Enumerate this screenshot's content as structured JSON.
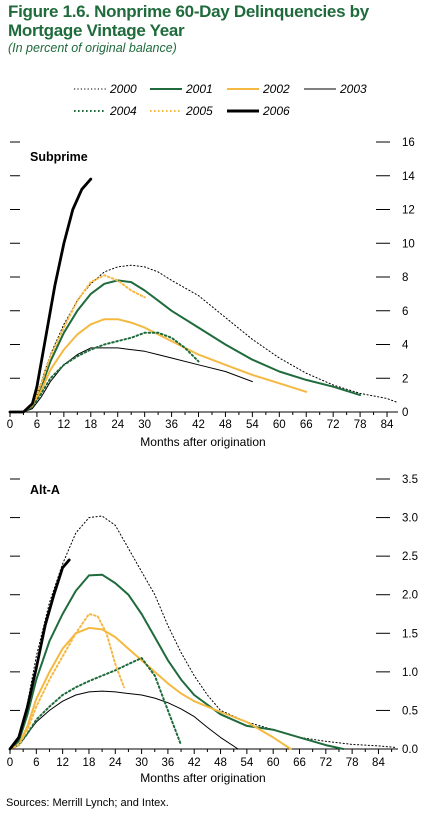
{
  "figure": {
    "title": "Figure 1.6. Nonprime 60-Day Delinquencies by Mortgage Vintage Year",
    "subtitle": "(In percent of original balance)",
    "source": "Sources: Merrill Lynch; and Intex."
  },
  "colors": {
    "title": "#1f6b3c",
    "y2000": "#000000",
    "y2001": "#1f6b3c",
    "y2002": "#f5b942",
    "y2003": "#000000",
    "y2004": "#1f6b3c",
    "y2005": "#f5b942",
    "y2006": "#000000"
  },
  "legend": [
    {
      "key": "y2000",
      "label": "2000",
      "style": "dotted",
      "weight": "thin"
    },
    {
      "key": "y2001",
      "label": "2001",
      "style": "solid",
      "weight": "medium"
    },
    {
      "key": "y2002",
      "label": "2002",
      "style": "solid",
      "weight": "medium"
    },
    {
      "key": "y2003",
      "label": "2003",
      "style": "solid",
      "weight": "thin"
    },
    {
      "key": "y2004",
      "label": "2004",
      "style": "dotted",
      "weight": "medium"
    },
    {
      "key": "y2005",
      "label": "2005",
      "style": "dotted",
      "weight": "medium"
    },
    {
      "key": "y2006",
      "label": "2006",
      "style": "solid",
      "weight": "thick"
    }
  ],
  "chart_data": [
    {
      "type": "line",
      "title": "Subprime",
      "xlabel": "Months after origination",
      "ylabel": "",
      "xlim": [
        0,
        86
      ],
      "ylim": [
        0,
        16
      ],
      "xticks": [
        0,
        6,
        12,
        18,
        24,
        30,
        36,
        42,
        48,
        54,
        60,
        66,
        72,
        78,
        84
      ],
      "yticks": [
        0,
        2,
        4,
        6,
        8,
        10,
        12,
        14,
        16
      ],
      "grid": false,
      "legend": "top",
      "series": [
        {
          "name": "2000",
          "key": "y2000",
          "x": [
            0,
            3,
            5,
            7,
            9,
            12,
            15,
            18,
            21,
            24,
            27,
            30,
            33,
            36,
            42,
            48,
            54,
            60,
            66,
            72,
            78,
            84,
            86
          ],
          "y": [
            0,
            0,
            0.4,
            1.8,
            3.4,
            5.2,
            6.6,
            7.6,
            8.3,
            8.6,
            8.7,
            8.6,
            8.3,
            7.8,
            6.9,
            5.6,
            4.3,
            3.2,
            2.3,
            1.6,
            1.1,
            0.8,
            0.6
          ]
        },
        {
          "name": "2001",
          "key": "y2001",
          "x": [
            0,
            3,
            5,
            7,
            9,
            12,
            15,
            18,
            21,
            24,
            27,
            30,
            33,
            36,
            42,
            48,
            54,
            60,
            66,
            72,
            78
          ],
          "y": [
            0,
            0,
            0.3,
            1.5,
            3.0,
            4.7,
            6.0,
            7.0,
            7.6,
            7.8,
            7.7,
            7.2,
            6.6,
            6.0,
            5.0,
            4.0,
            3.1,
            2.4,
            1.9,
            1.5,
            1.0
          ]
        },
        {
          "name": "2002",
          "key": "y2002",
          "x": [
            0,
            3,
            5,
            7,
            9,
            12,
            15,
            18,
            21,
            24,
            27,
            30,
            33,
            36,
            42,
            48,
            54,
            60,
            66
          ],
          "y": [
            0,
            0,
            0.3,
            1.3,
            2.5,
            3.7,
            4.6,
            5.2,
            5.5,
            5.5,
            5.3,
            5.0,
            4.6,
            4.2,
            3.4,
            2.8,
            2.2,
            1.7,
            1.2
          ]
        },
        {
          "name": "2003",
          "key": "y2003",
          "x": [
            0,
            3,
            5,
            7,
            9,
            12,
            15,
            18,
            21,
            24,
            27,
            30,
            33,
            36,
            42,
            48,
            54
          ],
          "y": [
            0,
            0,
            0.2,
            0.9,
            1.8,
            2.8,
            3.4,
            3.8,
            3.8,
            3.8,
            3.7,
            3.6,
            3.4,
            3.2,
            2.8,
            2.4,
            1.8
          ]
        },
        {
          "name": "2004",
          "key": "y2004",
          "x": [
            0,
            3,
            5,
            7,
            9,
            12,
            15,
            18,
            21,
            24,
            27,
            30,
            33,
            36,
            39,
            42
          ],
          "y": [
            0,
            0,
            0.3,
            1.1,
            2.0,
            2.8,
            3.3,
            3.7,
            4.0,
            4.2,
            4.4,
            4.7,
            4.7,
            4.4,
            3.8,
            3.0
          ]
        },
        {
          "name": "2005",
          "key": "y2005",
          "x": [
            0,
            3,
            5,
            7,
            9,
            12,
            15,
            18,
            21,
            24,
            27,
            30
          ],
          "y": [
            0,
            0,
            0.4,
            1.7,
            3.3,
            5.0,
            6.6,
            7.7,
            8.1,
            7.8,
            7.2,
            6.8
          ]
        },
        {
          "name": "2006",
          "key": "y2006",
          "x": [
            0,
            3,
            5,
            6,
            8,
            10,
            12,
            14,
            16,
            18
          ],
          "y": [
            0,
            0,
            0.5,
            1.5,
            4.5,
            7.5,
            10.0,
            12.0,
            13.2,
            13.8
          ]
        }
      ]
    },
    {
      "type": "line",
      "title": "Alt-A",
      "xlabel": "Months after origination",
      "ylabel": "",
      "xlim": [
        0,
        88
      ],
      "ylim": [
        0,
        3.5
      ],
      "xticks": [
        0,
        6,
        12,
        18,
        24,
        30,
        36,
        42,
        48,
        54,
        60,
        66,
        72,
        78,
        84
      ],
      "yticks": [
        0,
        0.5,
        1.0,
        1.5,
        2.0,
        2.5,
        3.0,
        3.5
      ],
      "grid": false,
      "legend": "",
      "series": [
        {
          "name": "2000",
          "key": "y2000",
          "x": [
            0,
            2,
            4,
            6,
            9,
            12,
            15,
            18,
            21,
            24,
            27,
            30,
            33,
            36,
            39,
            42,
            45,
            48,
            54,
            60,
            66,
            72,
            78,
            84,
            88
          ],
          "y": [
            0,
            0.1,
            0.6,
            1.2,
            1.9,
            2.4,
            2.8,
            3.0,
            3.02,
            2.9,
            2.6,
            2.3,
            2.0,
            1.6,
            1.25,
            0.95,
            0.7,
            0.5,
            0.35,
            0.25,
            0.15,
            0.1,
            0.06,
            0.04,
            0.02
          ]
        },
        {
          "name": "2001",
          "key": "y2001",
          "x": [
            0,
            2,
            4,
            6,
            9,
            12,
            15,
            18,
            21,
            24,
            27,
            30,
            33,
            36,
            39,
            42,
            48,
            54,
            60,
            66,
            72,
            76
          ],
          "y": [
            0,
            0.1,
            0.45,
            0.9,
            1.4,
            1.75,
            2.05,
            2.25,
            2.26,
            2.15,
            2.0,
            1.75,
            1.45,
            1.15,
            0.9,
            0.7,
            0.45,
            0.3,
            0.25,
            0.15,
            0.05,
            0
          ]
        },
        {
          "name": "2002",
          "key": "y2002",
          "x": [
            0,
            2,
            4,
            6,
            9,
            12,
            15,
            18,
            21,
            24,
            27,
            30,
            33,
            36,
            39,
            42,
            48,
            54,
            60,
            64
          ],
          "y": [
            0,
            0.05,
            0.3,
            0.65,
            1.0,
            1.3,
            1.5,
            1.57,
            1.55,
            1.45,
            1.3,
            1.15,
            1.0,
            0.85,
            0.72,
            0.62,
            0.48,
            0.35,
            0.15,
            0
          ]
        },
        {
          "name": "2003",
          "key": "y2003",
          "x": [
            0,
            2,
            4,
            6,
            9,
            12,
            15,
            18,
            21,
            24,
            27,
            30,
            33,
            36,
            39,
            42,
            45,
            48,
            52
          ],
          "y": [
            0,
            0.05,
            0.2,
            0.35,
            0.5,
            0.62,
            0.7,
            0.74,
            0.75,
            0.74,
            0.72,
            0.7,
            0.66,
            0.6,
            0.52,
            0.42,
            0.28,
            0.15,
            0
          ]
        },
        {
          "name": "2004",
          "key": "y2004",
          "x": [
            0,
            2,
            4,
            6,
            9,
            12,
            15,
            18,
            21,
            24,
            27,
            30,
            33,
            36,
            39
          ],
          "y": [
            0,
            0.05,
            0.2,
            0.38,
            0.55,
            0.7,
            0.8,
            0.88,
            0.95,
            1.02,
            1.1,
            1.18,
            0.95,
            0.5,
            0.05
          ]
        },
        {
          "name": "2005",
          "key": "y2005",
          "x": [
            0,
            2,
            4,
            6,
            9,
            12,
            15,
            18,
            20,
            22,
            24,
            26
          ],
          "y": [
            0,
            0.05,
            0.25,
            0.55,
            0.9,
            1.2,
            1.5,
            1.75,
            1.72,
            1.5,
            1.1,
            0.8
          ]
        },
        {
          "name": "2006",
          "key": "y2006",
          "x": [
            0,
            2,
            4,
            6,
            8,
            10,
            12,
            13.5
          ],
          "y": [
            0,
            0.15,
            0.55,
            1.05,
            1.6,
            2.0,
            2.35,
            2.45
          ]
        }
      ]
    }
  ]
}
